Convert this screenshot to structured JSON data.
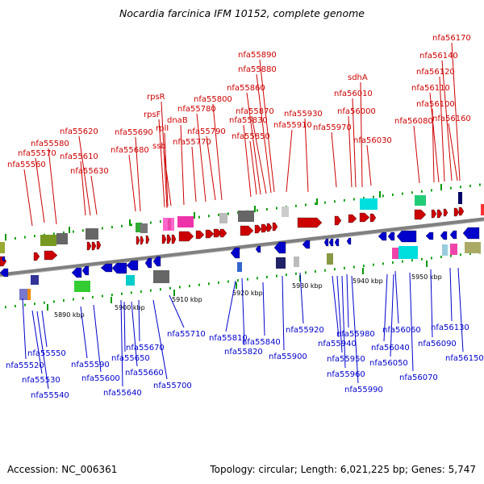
{
  "title": "Nocardia farcinica IFM 10152, complete genome",
  "footer": {
    "accession": "Accession: NC_006361",
    "topology": "Topology: circular; Length: 6,021,225 bp; Genes: 5,747"
  },
  "colors": {
    "forward": "#cc0000",
    "reverse": "#0000cc",
    "backbone": "#808080",
    "tick": "#009900"
  },
  "scale_labels": [
    "5890 kbp",
    "5900 kbp",
    "5910 kbp",
    "5920 kbp",
    "5930 kbp",
    "5940 kbp",
    "5950 kbp"
  ],
  "forward_genes": [
    "nfa55560",
    "nfa55570",
    "nfa55580",
    "nfa55610",
    "nfa55620",
    "nfa55630",
    "nfa55680",
    "nfa55690",
    "rpsR",
    "rpsF",
    "rplI",
    "ssb",
    "dnaB",
    "nfa55770",
    "nfa55780",
    "nfa55790",
    "nfa55800",
    "nfa55830",
    "nfa55850",
    "nfa55860",
    "nfa55870",
    "nfa55880",
    "nfa55890",
    "nfa55910",
    "nfa55930",
    "nfa55970",
    "nfa56000",
    "nfa56010",
    "sdhA",
    "nfa56030",
    "nfa56080",
    "nfa56100",
    "nfa56110",
    "nfa56120",
    "nfa56140",
    "nfa56160",
    "nfa56170"
  ],
  "reverse_genes": [
    "nfa55520",
    "nfa55530",
    "nfa55540",
    "nfa55550",
    "nfa55590",
    "nfa55600",
    "nfa55640",
    "nfa55650",
    "nfa55660",
    "nfa55670",
    "nfa55700",
    "nfa55710",
    "nfa55810",
    "nfa55820",
    "nfa55840",
    "nfa55900",
    "nfa55920",
    "nfa55940",
    "nfa55950",
    "nfa55960",
    "nfa55980",
    "nfa55990",
    "nfa56040",
    "nfa56050",
    "nfa56060",
    "nfa56070",
    "nfa56090",
    "nfa56130",
    "nfa56150"
  ]
}
